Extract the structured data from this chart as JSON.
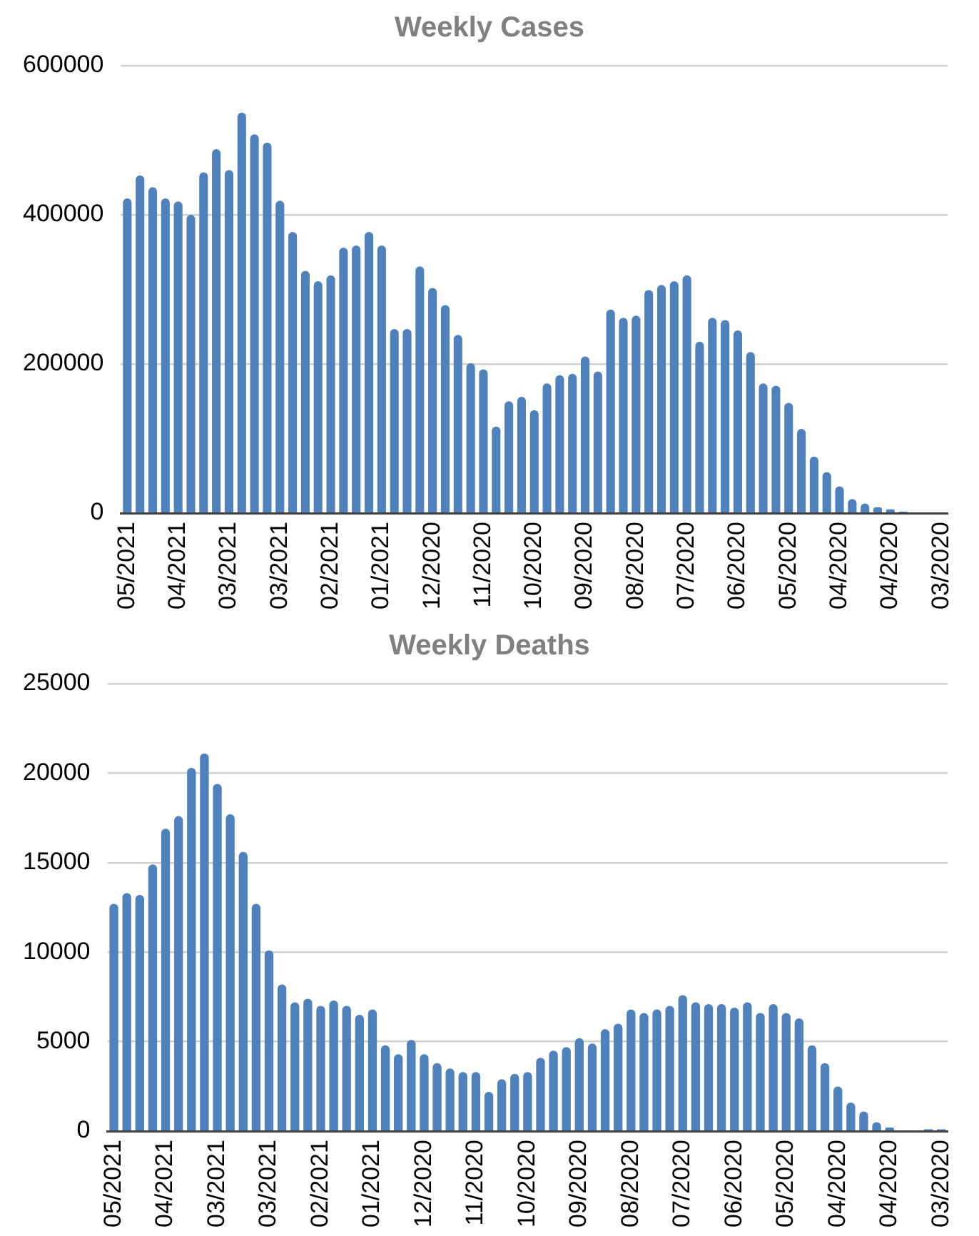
{
  "chart_data": [
    {
      "type": "bar",
      "title": "Weekly Cases",
      "categories": [
        "05/2021",
        null,
        null,
        null,
        "04/2021",
        null,
        null,
        null,
        "03/2021",
        null,
        null,
        null,
        "03/2021",
        null,
        null,
        null,
        "02/2021",
        null,
        null,
        null,
        "01/2021",
        null,
        null,
        null,
        "12/2020",
        null,
        null,
        null,
        "11/2020",
        null,
        null,
        null,
        "10/2020",
        null,
        null,
        null,
        "09/2020",
        null,
        null,
        null,
        "08/2020",
        null,
        null,
        null,
        "07/2020",
        null,
        null,
        null,
        "06/2020",
        null,
        null,
        null,
        "05/2020",
        null,
        null,
        null,
        "04/2020",
        null,
        null,
        null,
        "04/2020",
        null,
        null,
        null,
        "03/2020"
      ],
      "values": [
        422000,
        453000,
        437000,
        422000,
        418000,
        400000,
        457000,
        488000,
        460000,
        537000,
        508000,
        497000,
        419000,
        377000,
        325000,
        311000,
        319000,
        356000,
        359000,
        377000,
        359000,
        247000,
        247000,
        331000,
        302000,
        279000,
        239000,
        201000,
        193000,
        116000,
        150000,
        156000,
        138000,
        174000,
        185000,
        187000,
        210000,
        190000,
        273000,
        262000,
        265000,
        299000,
        306000,
        311000,
        319000,
        230000,
        262000,
        259000,
        245000,
        216000,
        174000,
        171000,
        148000,
        113000,
        76000,
        55000,
        36000,
        19000,
        13000,
        8000,
        5000,
        2000,
        0,
        0,
        0
      ],
      "color": "#4f81bd",
      "ylim": [
        0,
        600000
      ],
      "yticks": [
        0,
        200000,
        400000,
        600000
      ],
      "grid": "y"
    },
    {
      "type": "bar",
      "title": "Weekly Deaths",
      "categories": [
        "05/2021",
        null,
        null,
        null,
        "04/2021",
        null,
        null,
        null,
        "03/2021",
        null,
        null,
        null,
        "03/2021",
        null,
        null,
        null,
        "02/2021",
        null,
        null,
        null,
        "01/2021",
        null,
        null,
        null,
        "12/2020",
        null,
        null,
        null,
        "11/2020",
        null,
        null,
        null,
        "10/2020",
        null,
        null,
        null,
        "09/2020",
        null,
        null,
        null,
        "08/2020",
        null,
        null,
        null,
        "07/2020",
        null,
        null,
        null,
        "06/2020",
        null,
        null,
        null,
        "05/2020",
        null,
        null,
        null,
        "04/2020",
        null,
        null,
        null,
        "04/2020",
        null,
        null,
        null,
        "03/2020"
      ],
      "values": [
        12700,
        13300,
        13200,
        14900,
        16900,
        17600,
        20300,
        21100,
        19400,
        17700,
        15600,
        12700,
        10100,
        8200,
        7200,
        7400,
        7000,
        7300,
        7000,
        6500,
        6800,
        4800,
        4300,
        5100,
        4300,
        3800,
        3500,
        3300,
        3300,
        2200,
        2900,
        3200,
        3300,
        4100,
        4500,
        4700,
        5200,
        4900,
        5700,
        6000,
        6800,
        6600,
        6800,
        7000,
        7600,
        7200,
        7100,
        7100,
        6900,
        7200,
        6600,
        7100,
        6600,
        6300,
        4800,
        3800,
        2500,
        1600,
        1100,
        500,
        200,
        0,
        0,
        100,
        100
      ],
      "color": "#4f81bd",
      "ylim": [
        0,
        25000
      ],
      "yticks": [
        0,
        5000,
        10000,
        15000,
        20000,
        25000
      ],
      "grid": "y"
    }
  ]
}
